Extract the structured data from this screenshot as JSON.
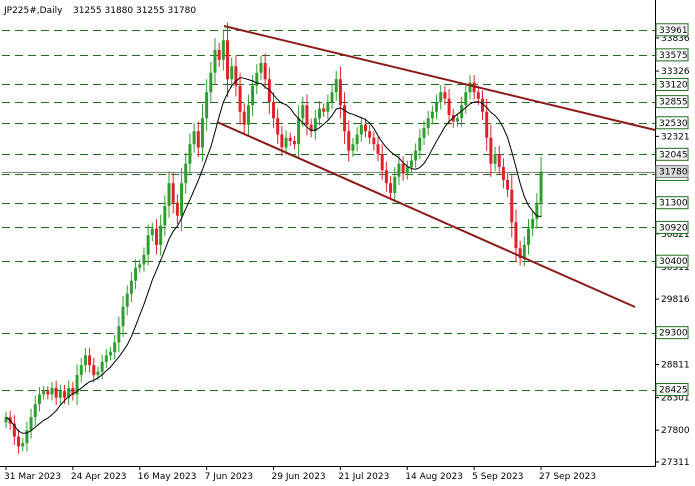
{
  "header": {
    "symbol": "JP225#,Daily",
    "ohlc": "31255 31880 31255 31780"
  },
  "colors": {
    "up": "#2e9e2e",
    "down": "#e0202a",
    "ma": "#000000",
    "channel": "#8b1a1a",
    "level_line": "#1f6b1f",
    "price_line": "#7f7f7f",
    "current_label_bg": "#d8d8d8"
  },
  "chart_data": {
    "type": "candlestick",
    "y_range": [
      27310,
      34050
    ],
    "y_ticks": [
      33836,
      33326,
      32321,
      31821,
      30821,
      30311,
      29816,
      28811,
      28301,
      27800,
      27311
    ],
    "levels": [
      33961,
      33575,
      33120,
      32855,
      32530,
      32045,
      31735,
      31300,
      30920,
      30400,
      29300,
      28425
    ],
    "current_price": 31780,
    "x_labels": [
      "31 Mar 2023",
      "24 Apr 2023",
      "16 May 2023",
      "7 Jun 2023",
      "29 Jun 2023",
      "21 Jul 2023",
      "14 Aug 2023",
      "5 Sep 2023",
      "27 Sep 2023"
    ],
    "x_label_bar_index": [
      0,
      16,
      32,
      48,
      64,
      80,
      96,
      112,
      128
    ],
    "bar_count": 140,
    "closes": [
      28000,
      27900,
      27700,
      27550,
      27600,
      27800,
      28000,
      28200,
      28350,
      28400,
      28350,
      28450,
      28300,
      28400,
      28300,
      28450,
      28350,
      28650,
      28800,
      28950,
      28800,
      28650,
      28700,
      28850,
      28950,
      29000,
      29150,
      29400,
      29700,
      29900,
      30100,
      30300,
      30350,
      30500,
      30800,
      30900,
      30650,
      30950,
      31250,
      31600,
      31300,
      31100,
      31600,
      31900,
      32200,
      32400,
      32150,
      32600,
      33000,
      33300,
      33650,
      33500,
      33800,
      33200,
      33400,
      33100,
      32700,
      32500,
      32800,
      33100,
      33300,
      33450,
      33200,
      32850,
      32600,
      32350,
      32150,
      32300,
      32250,
      32200,
      32600,
      32800,
      32500,
      32400,
      32600,
      32750,
      32700,
      32850,
      33000,
      33200,
      32800,
      32400,
      32100,
      32200,
      32350,
      32500,
      32400,
      32300,
      32200,
      32050,
      31800,
      31600,
      31450,
      31700,
      31900,
      31750,
      31850,
      31950,
      32100,
      32300,
      32450,
      32600,
      32700,
      32850,
      33000,
      32900,
      32650,
      32550,
      32600,
      32800,
      33000,
      33150,
      33000,
      32900,
      32700,
      32300,
      31900,
      32050,
      31850,
      31650,
      31500,
      31000,
      30600,
      30450,
      30650,
      30900,
      31050,
      31300,
      31780
    ]
  }
}
